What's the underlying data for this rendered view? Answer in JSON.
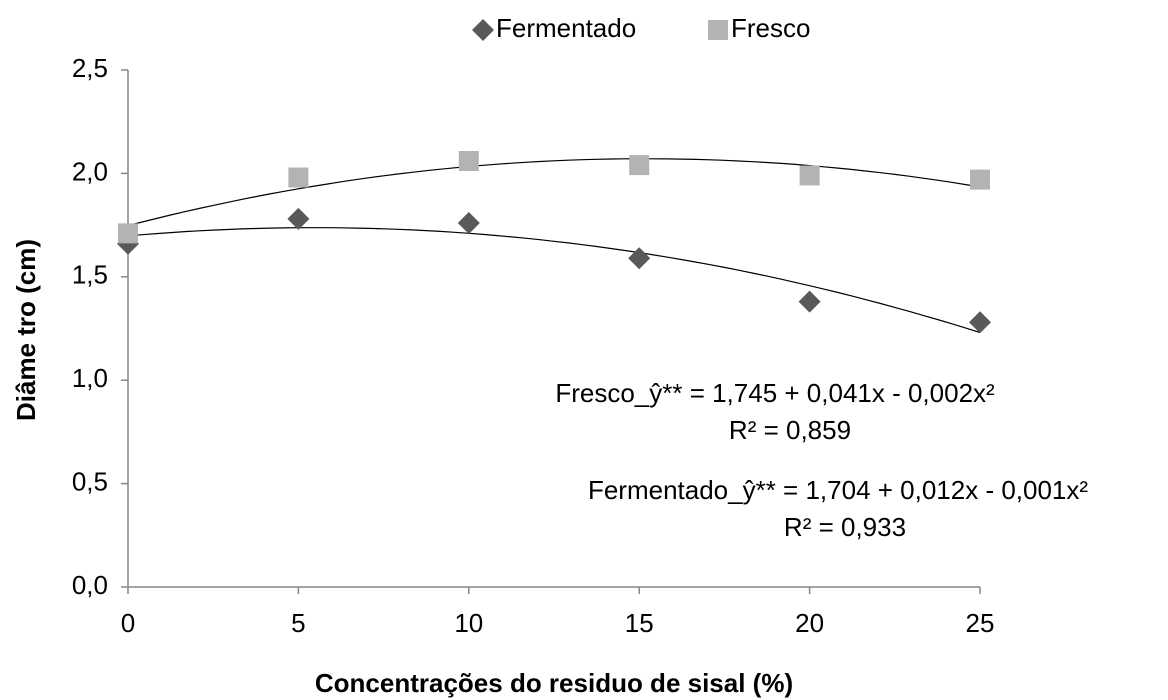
{
  "chart_data": {
    "type": "scatter",
    "xlabel": "Concentrações do residuo de sisal (%)",
    "ylabel": "Diâme tro (cm)",
    "x": [
      0,
      5,
      10,
      15,
      20,
      25
    ],
    "series": [
      {
        "name": "Fermentado",
        "color": "#595959",
        "marker": "diamond",
        "values": [
          1.66,
          1.78,
          1.76,
          1.59,
          1.38,
          1.28
        ]
      },
      {
        "name": "Fresco",
        "color": "#b3b3b3",
        "marker": "square",
        "values": [
          1.71,
          1.98,
          2.06,
          2.04,
          1.99,
          1.97
        ]
      }
    ],
    "trendline": "polynomial",
    "xlim": [
      0,
      25
    ],
    "xticks": [
      0,
      5,
      10,
      15,
      20,
      25
    ],
    "ylim": [
      0,
      2.5
    ],
    "yticks": [
      {
        "value": 0,
        "label": "0,0"
      },
      {
        "value": 0.5,
        "label": "0,5"
      },
      {
        "value": 1,
        "label": "1,0"
      },
      {
        "value": 1.5,
        "label": "1,5"
      },
      {
        "value": 2,
        "label": "2,0"
      },
      {
        "value": 2.5,
        "label": "2,5"
      }
    ],
    "legend": "top",
    "annotations": [
      "Fresco_ŷ** = 1,745 + 0,041x - 0,002x²",
      "R² = 0,859",
      "Fermentado_ŷ** = 1,704 + 0,012x - 0,001x²",
      "R² = 0,933"
    ]
  }
}
